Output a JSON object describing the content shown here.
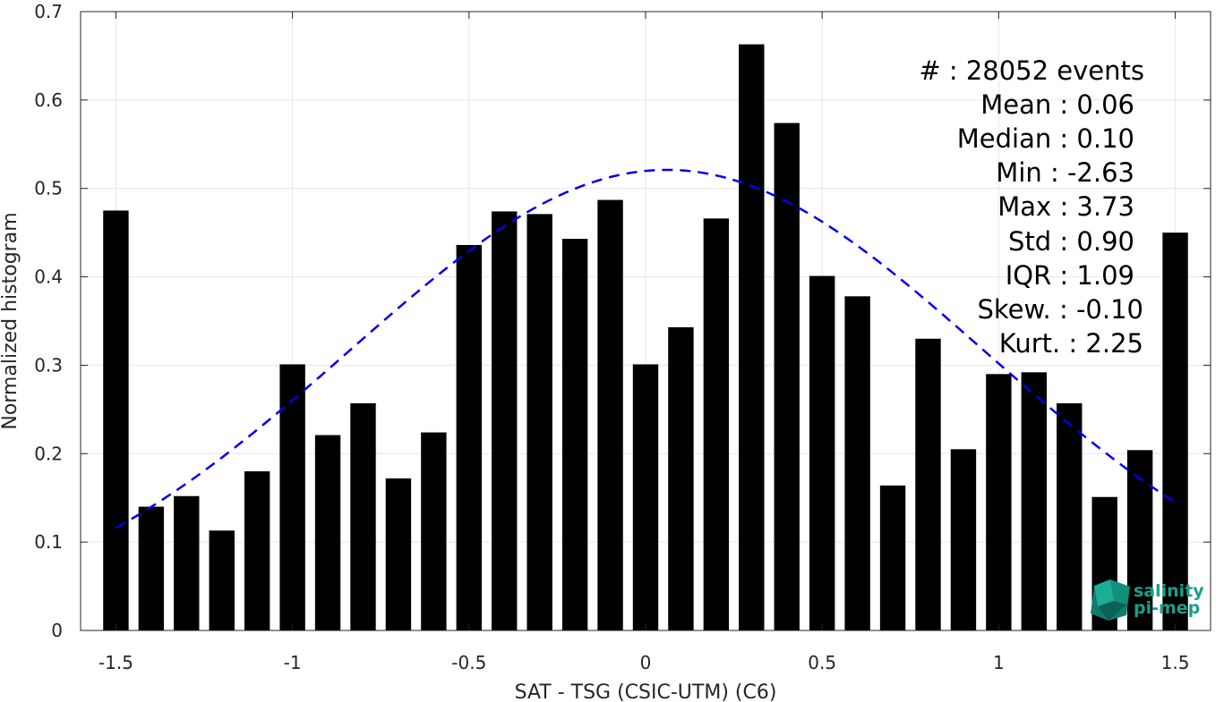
{
  "chart_data": {
    "type": "bar",
    "xlabel": "SAT - TSG (CSIC-UTM) (C6)",
    "ylabel": "Normalized histogram",
    "xlim": [
      -1.6,
      1.6
    ],
    "ylim": [
      0,
      0.7
    ],
    "x_ticks": [
      -1.5,
      -1,
      -0.5,
      0,
      0.5,
      1,
      1.5
    ],
    "x_tick_labels": [
      "-1.5",
      "-1",
      "-0.5",
      "0",
      "0.5",
      "1",
      "1.5"
    ],
    "y_ticks": [
      0,
      0.1,
      0.2,
      0.3,
      0.4,
      0.5,
      0.6,
      0.7
    ],
    "y_tick_labels": [
      "0",
      "0.1",
      "0.2",
      "0.3",
      "0.4",
      "0.5",
      "0.6",
      "0.7"
    ],
    "grid": true,
    "bar_color": "#000000",
    "x": [
      -1.5,
      -1.4,
      -1.3,
      -1.2,
      -1.1,
      -1.0,
      -0.9,
      -0.8,
      -0.7,
      -0.6,
      -0.5,
      -0.4,
      -0.3,
      -0.2,
      -0.1,
      0.0,
      0.1,
      0.2,
      0.3,
      0.4,
      0.5,
      0.6,
      0.7,
      0.8,
      0.9,
      1.0,
      1.1,
      1.2,
      1.3,
      1.4,
      1.5
    ],
    "values": [
      0.475,
      0.14,
      0.152,
      0.113,
      0.18,
      0.301,
      0.221,
      0.257,
      0.172,
      0.224,
      0.436,
      0.474,
      0.471,
      0.443,
      0.487,
      0.301,
      0.343,
      0.466,
      0.663,
      0.574,
      0.401,
      0.378,
      0.164,
      0.33,
      0.205,
      0.29,
      0.292,
      0.257,
      0.151,
      0.204,
      0.45
    ],
    "fit_curve": {
      "type": "gaussian",
      "style": "dashed",
      "color": "#0000ee",
      "mean": 0.06,
      "std": 0.9,
      "peak": 0.521,
      "x_range": [
        -1.5,
        1.5
      ]
    },
    "annotations": [
      "#  : 28052 events",
      "Mean : 0.06",
      "Median : 0.10",
      "Min : -2.63",
      "Max : 3.73",
      "Std : 0.90",
      "IQR : 1.09",
      "Skew. : -0.10",
      "Kurt. : 2.25"
    ]
  },
  "logo": {
    "line1": "salinity",
    "line2": "pi-mep",
    "color": "#1a9e8a"
  }
}
